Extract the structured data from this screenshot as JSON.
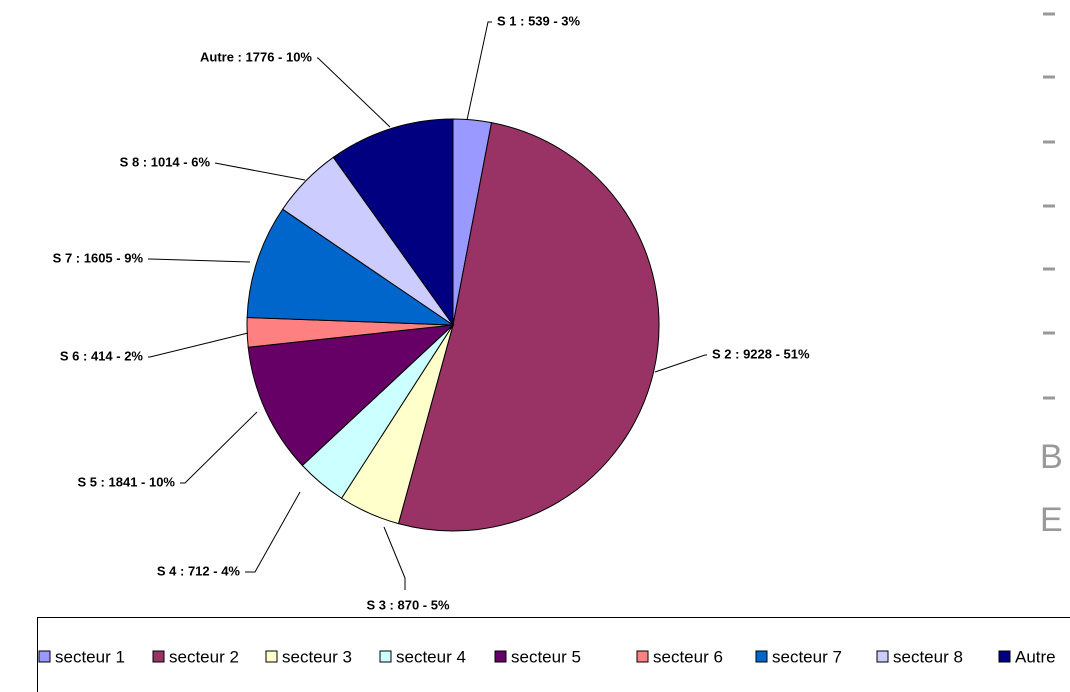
{
  "chart_data": {
    "type": "pie",
    "categories": [
      "secteur 1",
      "secteur 2",
      "secteur 3",
      "secteur 4",
      "secteur 5",
      "secteur 6",
      "secteur 7",
      "secteur 8",
      "Autre"
    ],
    "values": [
      539,
      9228,
      870,
      712,
      1841,
      414,
      1605,
      1014,
      1776
    ],
    "value_labels": [
      "S 1 : 539 - 3%",
      "S 2 : 9228 - 51%",
      "S 3 :  870 - 5%",
      "S 4 : 712 - 4%",
      "S 5 : 1841 - 10%",
      "S 6 : 414 - 2%",
      "S 7 : 1605 - 9%",
      "S 8 : 1014 - 6%",
      "Autre : 1776 - 10%"
    ],
    "colors": [
      "#9999ff",
      "#993366",
      "#ffffcc",
      "#ccffff",
      "#660066",
      "#ff8080",
      "#0066cc",
      "#ccccff",
      "#000080"
    ],
    "legend": "bottom",
    "side_text": [
      "B",
      "E"
    ]
  }
}
